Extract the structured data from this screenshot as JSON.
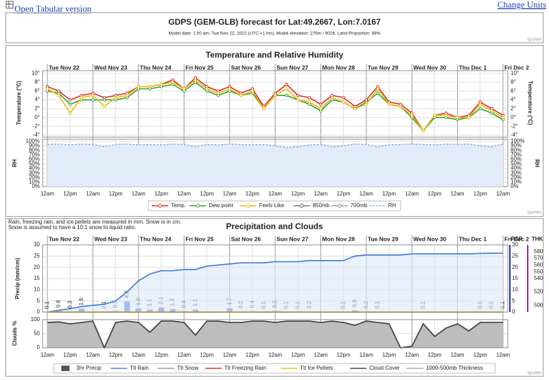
{
  "links": {
    "tabular": "Open Tabular version",
    "units": "Change Units"
  },
  "header": {
    "title": "GDPS (GEM-GLB) forecast for Lat:49.2667, Lon:7.0167",
    "subtitle": "Model date: 1:00 am, Tue Nov 22, 2022 (UTC +1 hrs), Model elevation: 275m / 902ft, Land Proportion: 98%",
    "watermark": "SpotWx"
  },
  "chart_data": [
    {
      "type": "line",
      "title": "Temperature and Relative Humidity",
      "watermark": "SpotWx",
      "days": [
        "Tue Nov 22",
        "Wed Nov 23",
        "Thu Nov 24",
        "Fri Nov 25",
        "Sat Nov 26",
        "Sun Nov 27",
        "Mon Nov 28",
        "Tue Nov 29",
        "Wed Nov 30",
        "Thu Dec 1",
        "Fri Dec 2"
      ],
      "categories": [
        "12am",
        null,
        "12pm",
        null,
        "12am",
        null,
        "12pm",
        null,
        "12am",
        null,
        "12pm",
        null,
        "12am",
        null,
        "12pm",
        null,
        "12am",
        null,
        "12pm",
        null,
        "12am",
        null,
        "12pm",
        null,
        "12am",
        null,
        "12pm",
        null,
        "12am",
        null,
        "12pm",
        null,
        "12am",
        null,
        "12pm",
        null,
        "12am",
        null,
        "12pm",
        null,
        "12am"
      ],
      "ylabel": "Temperature (°C)",
      "ylim": [
        -4,
        10
      ],
      "yticks": [
        {
          "value": -4,
          "label": "-4°"
        },
        {
          "value": -2,
          "label": "-2°"
        },
        {
          "value": 0,
          "label": "0°"
        },
        {
          "value": 2,
          "label": "2°"
        },
        {
          "value": 4,
          "label": "4°"
        },
        {
          "value": 6,
          "label": "6°"
        },
        {
          "value": 8,
          "label": "8°"
        },
        {
          "value": 10,
          "label": "10°"
        }
      ],
      "y2label": "RH",
      "y2lim": [
        0,
        100
      ],
      "y2ticks": [
        {
          "value": 0,
          "label": "0%"
        },
        {
          "value": 10,
          "label": "10%"
        },
        {
          "value": 20,
          "label": "20%"
        },
        {
          "value": 30,
          "label": "30%"
        },
        {
          "value": 40,
          "label": "40%"
        },
        {
          "value": 50,
          "label": "50%"
        },
        {
          "value": 60,
          "label": "60%"
        },
        {
          "value": 70,
          "label": "70%"
        },
        {
          "value": 80,
          "label": "80%"
        },
        {
          "value": 90,
          "label": "90%"
        },
        {
          "value": 100,
          "label": "100%"
        }
      ],
      "grid": true,
      "series": [
        {
          "name": "Temp.",
          "color": "#d62728",
          "marker": "circle",
          "values": [
            7,
            6,
            4,
            5,
            5.5,
            4.5,
            5,
            5.5,
            7,
            7,
            7.5,
            8.5,
            6.5,
            9,
            7,
            6,
            7,
            5.5,
            6.5,
            2.5,
            5.5,
            7.5,
            5,
            4.5,
            3,
            5,
            4.5,
            2.5,
            4,
            7,
            3.5,
            3,
            1,
            -3,
            0.5,
            1,
            0,
            0.5,
            3.5,
            2,
            0.5
          ]
        },
        {
          "name": "Dew point",
          "color": "#2ca02c",
          "marker": "circle",
          "values": [
            6,
            5.5,
            3,
            4,
            4,
            4,
            4,
            4.5,
            6.5,
            6.5,
            7,
            7.5,
            6,
            8,
            6,
            5,
            6,
            5,
            5.5,
            2,
            5,
            5,
            4,
            3,
            1.5,
            4,
            3.5,
            2,
            3.5,
            5.5,
            3,
            2.5,
            0,
            -3,
            0,
            0,
            -0.5,
            0,
            2,
            1,
            -0.5
          ]
        },
        {
          "name": "Feels Like",
          "color": "#eeb900",
          "marker": "circle",
          "values": [
            6.5,
            5,
            1,
            4.5,
            5,
            2.5,
            4.5,
            5,
            7,
            7,
            7.5,
            8,
            6.5,
            8.5,
            6.5,
            5.5,
            6.5,
            5,
            6,
            2,
            5,
            6.5,
            4,
            3.5,
            2,
            4.5,
            3.5,
            2,
            3,
            6.5,
            3,
            2.5,
            0.5,
            -3,
            0.5,
            0.5,
            0,
            0,
            3,
            1.5,
            0
          ]
        },
        {
          "name": "850mb",
          "color": "#777777",
          "marker": "diamond"
        },
        {
          "name": "700mb",
          "color": "#999999",
          "marker": "diamond"
        },
        {
          "name": "RH",
          "color": "#7fb2e5",
          "axis": "y2",
          "dash": true,
          "values": [
            93,
            94,
            92,
            94,
            93,
            88,
            93,
            94,
            92,
            93,
            92,
            94,
            93,
            88,
            93,
            92,
            94,
            93,
            92,
            93,
            90,
            86,
            88,
            92,
            93,
            88,
            90,
            94,
            93,
            88,
            92,
            93,
            94,
            93,
            92,
            94,
            93,
            94,
            90,
            88,
            94
          ]
        }
      ]
    },
    {
      "type": "bar",
      "title": "Precipitation and Clouds",
      "watermark": "SpotWx",
      "notes": [
        "Rain, freezing rain, and ice pellets are measured in mm. Snow is in cm.",
        "Snow is assumed to have a 10:1 snow to liquid ratio."
      ],
      "days": [
        "Tue Nov 22",
        "Wed Nov 23",
        "Thu Nov 24",
        "Fri Nov 25",
        "Sat Nov 26",
        "Sun Nov 27",
        "Mon Nov 28",
        "Tue Nov 29",
        "Wed Nov 30",
        "Thu Dec 1",
        "Fri Dec 2"
      ],
      "categories": [
        "12am",
        null,
        "12pm",
        null,
        "12am",
        null,
        "12pm",
        null,
        "12am",
        null,
        "12pm",
        null,
        "12am",
        null,
        "12pm",
        null,
        "12am",
        null,
        "12pm",
        null,
        "12am",
        null,
        "12pm",
        null,
        "12am",
        null,
        "12pm",
        null,
        "12am",
        null,
        "12pm",
        null,
        "12am",
        null,
        "12pm",
        null,
        "12am",
        null,
        "12pm",
        null,
        "12am"
      ],
      "ylabel": "Precip (mm/cm)",
      "y_right_label": "PCP",
      "ylim": [
        0,
        30
      ],
      "yticks": [
        0,
        5,
        10,
        15,
        20,
        25,
        30
      ],
      "y2label": "THK",
      "y2lim": [
        490,
        590
      ],
      "y2ticks": [
        500,
        520,
        540,
        550,
        560,
        570,
        580
      ],
      "cloudlabel": "Clouds %",
      "cloudlim": [
        0,
        100
      ],
      "cloudticks": [
        0,
        50,
        100
      ],
      "grid": true,
      "series": [
        {
          "name": "3hr Precip",
          "color": "#4a7fd8",
          "kind": "bar",
          "values": [
            0.1,
            0.6,
            0.3,
            1.6,
            0,
            0.1,
            0.5,
            4.8,
            1.6,
            1.1,
            2.1,
            1.3,
            0.4,
            1.1,
            0,
            0,
            1.7,
            0.2,
            0.4,
            0.1,
            0.5,
            0.1,
            0.1,
            0.2,
            0,
            0,
            0.1,
            0.8,
            0.2,
            0.1,
            0,
            0,
            0,
            0.1,
            0,
            0,
            0,
            0,
            0.1,
            0.1,
            0.1
          ]
        },
        {
          "name": "Ttl Rain",
          "color": "#4a7fd8",
          "kind": "line",
          "fill": "#dce8fb",
          "values": [
            0,
            0.8,
            1.5,
            2.5,
            3,
            3.5,
            5,
            9,
            14,
            17,
            18.5,
            18.5,
            19,
            19,
            20.5,
            21,
            21.5,
            22,
            22,
            22,
            22.5,
            22.5,
            22.5,
            23,
            23,
            23,
            23,
            25,
            25.5,
            25.5,
            25.5,
            25.5,
            26,
            26,
            26,
            26,
            26,
            26,
            26.2,
            26.3,
            26.3
          ]
        },
        {
          "name": "Ttl Snow",
          "color": "#999999",
          "kind": "line",
          "values": [
            0,
            0,
            0,
            0,
            0,
            0,
            0,
            0,
            0,
            0,
            0,
            0,
            0,
            0,
            0,
            0,
            0,
            0,
            0,
            0,
            0,
            0,
            0,
            0,
            0,
            0,
            0,
            0,
            0,
            0,
            0,
            0,
            0,
            0,
            0,
            0,
            0,
            0,
            0,
            0,
            0
          ]
        },
        {
          "name": "Ttl Freezing Rain",
          "color": "#e03030",
          "kind": "line",
          "values": [
            0,
            0,
            0,
            0,
            0,
            0,
            0,
            0,
            0,
            0,
            0,
            0,
            0,
            0,
            0,
            0,
            0,
            0,
            0,
            0,
            0,
            0,
            0,
            0,
            0,
            0,
            0,
            0,
            0,
            0,
            0,
            0,
            0,
            0,
            0,
            0,
            0,
            0,
            0,
            0,
            0
          ]
        },
        {
          "name": "Ttl Ice Pellets",
          "color": "#e8c800",
          "kind": "line",
          "values": [
            0,
            0,
            0,
            0,
            0,
            0,
            0,
            0,
            0,
            0,
            0,
            0,
            0,
            0,
            0,
            0,
            0,
            0,
            0,
            0,
            0,
            0,
            0,
            0,
            0,
            0,
            0,
            0,
            0,
            0,
            0,
            0,
            0,
            0,
            0,
            0,
            0,
            0,
            0,
            0,
            0
          ]
        },
        {
          "name": "Cloud Cover",
          "color": "#444444",
          "kind": "cloud",
          "fill": "#bdbdbd",
          "values": [
            90,
            92,
            85,
            90,
            95,
            0,
            90,
            95,
            90,
            55,
            95,
            95,
            90,
            45,
            95,
            95,
            90,
            90,
            95,
            95,
            90,
            95,
            95,
            95,
            90,
            95,
            90,
            80,
            95,
            90,
            85,
            0,
            5,
            85,
            40,
            70,
            85,
            60,
            90,
            90,
            90
          ]
        },
        {
          "name": "1000-500mb Thickness",
          "color": "#aaaaaa",
          "kind": "line",
          "axis": "y2"
        }
      ]
    }
  ]
}
